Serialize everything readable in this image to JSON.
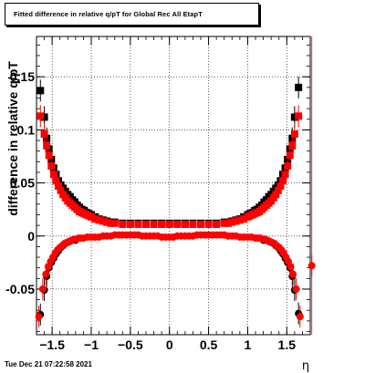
{
  "title": "Fitted difference in relative q/pT for Global Rec All EtapT",
  "timestamp": "Tue Dec 21 07:22:58 2021",
  "chart_data": {
    "type": "scatter",
    "title": "Fitted difference in relative q/pT for Global Rec All EtapT",
    "xlabel": "η",
    "ylabel": "difference in relative q/pT",
    "xlim": [
      -1.7,
      1.8
    ],
    "ylim": [
      -0.093,
      0.188
    ],
    "xticks": [
      -1.5,
      -1,
      -0.5,
      0,
      0.5,
      1,
      1.5
    ],
    "xtick_labels": [
      "−1.5",
      "−1",
      "−0.5",
      "0",
      "0.5",
      "1",
      "1.5"
    ],
    "yticks": [
      -0.05,
      0,
      0.05,
      0.1,
      0.15
    ],
    "ytick_labels": [
      "-0.05",
      "0",
      "0.05",
      "0.1",
      "0.15"
    ],
    "grid": true,
    "colors": {
      "black_series": "#000000",
      "red_series": "#ff0000"
    },
    "series": [
      {
        "marker": "square",
        "color": "#000000",
        "x": [
          -1.65,
          -1.6,
          -1.57,
          -1.54,
          -1.51,
          -1.48,
          -1.45,
          -1.42,
          -1.39,
          -1.36,
          -1.33,
          -1.3,
          -1.27,
          -1.24,
          -1.21,
          -1.18,
          -1.15,
          -1.12,
          -1.09,
          -1.06,
          -1.03,
          -1.0,
          -0.95,
          -0.9,
          -0.85,
          -0.8,
          -0.75,
          -0.7,
          -0.6,
          -0.5,
          -0.4,
          -0.3,
          -0.2,
          -0.1,
          0.0,
          0.1,
          0.2,
          0.3,
          0.4,
          0.5,
          0.6,
          0.7,
          0.75,
          0.8,
          0.85,
          0.9,
          0.95,
          1.0,
          1.03,
          1.06,
          1.09,
          1.12,
          1.15,
          1.18,
          1.21,
          1.24,
          1.27,
          1.3,
          1.33,
          1.36,
          1.39,
          1.42,
          1.45,
          1.48,
          1.51,
          1.54,
          1.57,
          1.6,
          1.65
        ],
        "y": [
          0.137,
          0.112,
          0.092,
          0.082,
          0.072,
          0.064,
          0.058,
          0.052,
          0.048,
          0.045,
          0.042,
          0.039,
          0.037,
          0.034,
          0.032,
          0.029,
          0.027,
          0.025,
          0.024,
          0.022,
          0.021,
          0.02,
          0.018,
          0.016,
          0.015,
          0.014,
          0.013,
          0.013,
          0.012,
          0.012,
          0.012,
          0.012,
          0.012,
          0.012,
          0.012,
          0.012,
          0.012,
          0.012,
          0.012,
          0.012,
          0.012,
          0.013,
          0.013,
          0.014,
          0.015,
          0.016,
          0.018,
          0.02,
          0.021,
          0.022,
          0.024,
          0.025,
          0.027,
          0.029,
          0.032,
          0.034,
          0.037,
          0.039,
          0.042,
          0.045,
          0.048,
          0.052,
          0.058,
          0.064,
          0.072,
          0.082,
          0.092,
          0.112,
          0.14
        ]
      },
      {
        "marker": "square",
        "color": "#ff0000",
        "x": [
          -1.65,
          -1.6,
          -1.57,
          -1.54,
          -1.51,
          -1.48,
          -1.45,
          -1.42,
          -1.39,
          -1.36,
          -1.33,
          -1.3,
          -1.27,
          -1.24,
          -1.21,
          -1.18,
          -1.15,
          -1.12,
          -1.09,
          -1.06,
          -1.03,
          -1.0,
          -0.95,
          -0.9,
          -0.85,
          -0.8,
          -0.75,
          -0.7,
          -0.6,
          -0.5,
          -0.4,
          -0.3,
          -0.2,
          -0.1,
          0.0,
          0.1,
          0.2,
          0.3,
          0.4,
          0.5,
          0.6,
          0.7,
          0.75,
          0.8,
          0.85,
          0.9,
          0.95,
          1.0,
          1.03,
          1.06,
          1.09,
          1.12,
          1.15,
          1.18,
          1.21,
          1.24,
          1.27,
          1.3,
          1.33,
          1.36,
          1.39,
          1.42,
          1.45,
          1.48,
          1.51,
          1.54,
          1.57,
          1.6,
          1.65
        ],
        "y": [
          0.113,
          0.096,
          0.085,
          0.076,
          0.066,
          0.058,
          0.052,
          0.047,
          0.043,
          0.039,
          0.036,
          0.033,
          0.031,
          0.029,
          0.027,
          0.025,
          0.023,
          0.022,
          0.021,
          0.02,
          0.019,
          0.018,
          0.016,
          0.015,
          0.014,
          0.013,
          0.012,
          0.012,
          0.011,
          0.011,
          0.011,
          0.011,
          0.011,
          0.011,
          0.011,
          0.011,
          0.011,
          0.011,
          0.011,
          0.011,
          0.011,
          0.012,
          0.012,
          0.013,
          0.014,
          0.015,
          0.016,
          0.018,
          0.019,
          0.02,
          0.021,
          0.022,
          0.023,
          0.025,
          0.027,
          0.029,
          0.031,
          0.033,
          0.036,
          0.039,
          0.043,
          0.047,
          0.052,
          0.058,
          0.066,
          0.076,
          0.085,
          0.096,
          0.113
        ]
      },
      {
        "marker": "circle",
        "color": "#000000",
        "x": [
          -1.65,
          -1.6,
          -1.57,
          -1.54,
          -1.51,
          -1.48,
          -1.45,
          -1.42,
          -1.39,
          -1.36,
          -1.33,
          -1.3,
          -1.27,
          -1.24,
          -1.2,
          1.2,
          1.24,
          1.27,
          1.3,
          1.33,
          1.36,
          1.39,
          1.42,
          1.45,
          1.48,
          1.51,
          1.54,
          1.57,
          1.6,
          1.65
        ],
        "y": [
          -0.074,
          -0.051,
          -0.038,
          -0.03,
          -0.025,
          -0.021,
          -0.017,
          -0.014,
          -0.011,
          -0.009,
          -0.007,
          -0.006,
          -0.005,
          -0.004,
          -0.004,
          -0.004,
          -0.004,
          -0.005,
          -0.006,
          -0.007,
          -0.009,
          -0.011,
          -0.014,
          -0.017,
          -0.021,
          -0.025,
          -0.03,
          -0.038,
          -0.051,
          -0.073
        ]
      },
      {
        "marker": "circle",
        "color": "#ff0000",
        "x": [
          -1.67,
          -1.62,
          -1.58,
          -1.55,
          -1.52,
          -1.49,
          -1.46,
          -1.43,
          -1.4,
          -1.37,
          -1.34,
          -1.31,
          -1.28,
          -1.25,
          -1.22,
          -1.19,
          -1.16,
          -1.13,
          -1.1,
          -1.05,
          -1.0,
          -0.95,
          -0.9,
          -0.85,
          -0.8,
          -0.75,
          -0.7,
          -0.65,
          -0.6,
          -0.55,
          -0.5,
          -0.45,
          -0.4,
          -0.35,
          -0.3,
          -0.25,
          -0.2,
          -0.15,
          -0.1,
          -0.05,
          0.0,
          0.05,
          0.1,
          0.15,
          0.2,
          0.25,
          0.3,
          0.35,
          0.4,
          0.45,
          0.5,
          0.55,
          0.6,
          0.65,
          0.7,
          0.75,
          0.8,
          0.85,
          0.9,
          0.95,
          1.0,
          1.05,
          1.1,
          1.13,
          1.16,
          1.19,
          1.22,
          1.25,
          1.28,
          1.31,
          1.34,
          1.37,
          1.4,
          1.43,
          1.46,
          1.49,
          1.52,
          1.55,
          1.58,
          1.62,
          1.67,
          1.82
        ],
        "y": [
          -0.076,
          -0.05,
          -0.036,
          -0.029,
          -0.024,
          -0.02,
          -0.016,
          -0.013,
          -0.011,
          -0.009,
          -0.007,
          -0.006,
          -0.005,
          -0.004,
          -0.003,
          -0.003,
          -0.002,
          -0.002,
          -0.002,
          -0.001,
          -0.001,
          -0.001,
          -0.001,
          0.0,
          0.0,
          0.0,
          0.001,
          0.001,
          0.001,
          0.001,
          0.001,
          0.001,
          0.001,
          0.0,
          0.0,
          0.0,
          0.0,
          0.0,
          -0.001,
          -0.001,
          -0.001,
          -0.001,
          0.0,
          0.0,
          0.0,
          0.0,
          0.0,
          0.001,
          0.001,
          0.001,
          0.001,
          0.001,
          0.001,
          0.001,
          0.001,
          0.0,
          0.0,
          0.0,
          -0.001,
          -0.001,
          -0.001,
          -0.001,
          -0.002,
          -0.002,
          -0.002,
          -0.003,
          -0.003,
          -0.004,
          -0.005,
          -0.006,
          -0.007,
          -0.009,
          -0.011,
          -0.013,
          -0.016,
          -0.02,
          -0.024,
          -0.029,
          -0.036,
          -0.05,
          -0.076,
          -0.028
        ]
      }
    ]
  }
}
